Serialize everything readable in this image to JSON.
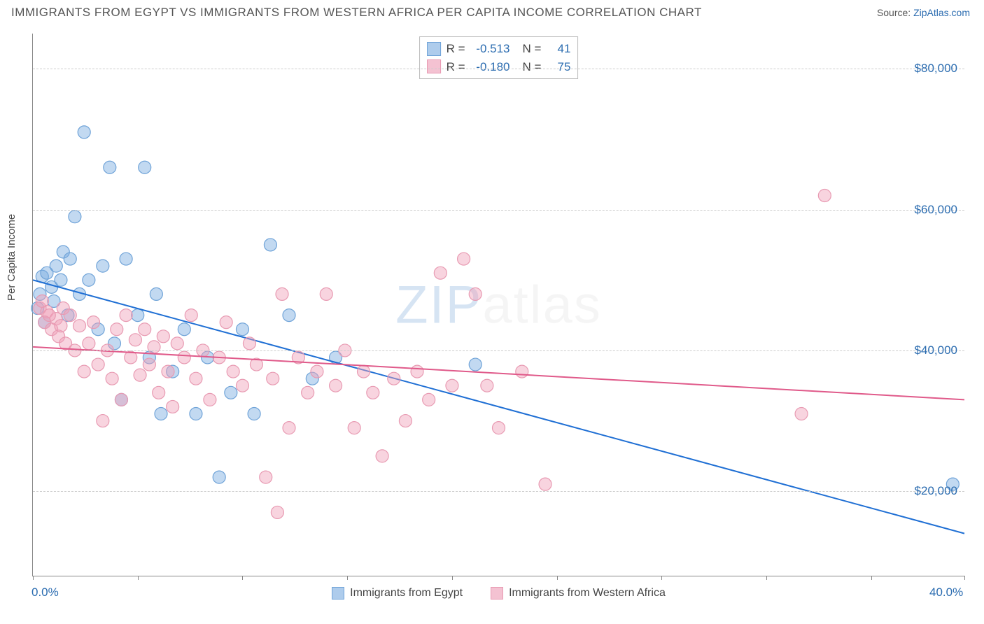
{
  "title": "IMMIGRANTS FROM EGYPT VS IMMIGRANTS FROM WESTERN AFRICA PER CAPITA INCOME CORRELATION CHART",
  "source_label": "Source:",
  "source_name": "ZipAtlas.com",
  "ylabel": "Per Capita Income",
  "watermark": {
    "zip": "ZIP",
    "rest": "atlas"
  },
  "chart": {
    "type": "scatter",
    "xlim": [
      0,
      40
    ],
    "ylim": [
      8000,
      85000
    ],
    "x_axis_labels": [
      {
        "x": 0,
        "text": "0.0%"
      },
      {
        "x": 40,
        "text": "40.0%"
      }
    ],
    "x_ticks": [
      0,
      4.5,
      9,
      13.5,
      18,
      22.5,
      27,
      31.5,
      36,
      40
    ],
    "y_gridlines": [
      20000,
      40000,
      60000,
      80000
    ],
    "y_tick_labels": [
      "$20,000",
      "$40,000",
      "$60,000",
      "$80,000"
    ],
    "grid_color": "#cccccc",
    "axis_color": "#888888",
    "background_color": "#ffffff",
    "marker_radius": 9,
    "marker_opacity": 0.55,
    "line_width": 2,
    "series": [
      {
        "name": "Immigrants from Egypt",
        "color_fill": "rgba(120,170,225,0.45)",
        "color_stroke": "#6fa3d8",
        "swatch_fill": "#aeccec",
        "swatch_border": "#6fa3d8",
        "stats": {
          "R": "-0.513",
          "N": "41"
        },
        "trend": {
          "x1": 0,
          "y1": 50000,
          "x2": 40,
          "y2": 14000,
          "color": "#1f6fd4"
        },
        "points": [
          [
            0.3,
            48000
          ],
          [
            0.4,
            50500
          ],
          [
            0.5,
            44000
          ],
          [
            0.6,
            51000
          ],
          [
            0.8,
            49000
          ],
          [
            0.9,
            47000
          ],
          [
            1.0,
            52000
          ],
          [
            1.2,
            50000
          ],
          [
            1.3,
            54000
          ],
          [
            1.5,
            45000
          ],
          [
            1.6,
            53000
          ],
          [
            1.8,
            59000
          ],
          [
            2.0,
            48000
          ],
          [
            2.2,
            71000
          ],
          [
            2.4,
            50000
          ],
          [
            2.8,
            43000
          ],
          [
            3.0,
            52000
          ],
          [
            3.3,
            66000
          ],
          [
            3.5,
            41000
          ],
          [
            3.8,
            33000
          ],
          [
            4.0,
            53000
          ],
          [
            4.5,
            45000
          ],
          [
            4.8,
            66000
          ],
          [
            5.0,
            39000
          ],
          [
            5.3,
            48000
          ],
          [
            5.5,
            31000
          ],
          [
            6.0,
            37000
          ],
          [
            6.5,
            43000
          ],
          [
            7.0,
            31000
          ],
          [
            7.5,
            39000
          ],
          [
            8.0,
            22000
          ],
          [
            8.5,
            34000
          ],
          [
            9.0,
            43000
          ],
          [
            9.5,
            31000
          ],
          [
            10.2,
            55000
          ],
          [
            11.0,
            45000
          ],
          [
            12.0,
            36000
          ],
          [
            13.0,
            39000
          ],
          [
            19.0,
            38000
          ],
          [
            39.5,
            21000
          ],
          [
            0.2,
            46000
          ]
        ]
      },
      {
        "name": "Immigrants from Western Africa",
        "color_fill": "rgba(240,160,185,0.45)",
        "color_stroke": "#e89ab2",
        "swatch_fill": "#f4c2d2",
        "swatch_border": "#e89ab2",
        "stats": {
          "R": "-0.180",
          "N": "75"
        },
        "trend": {
          "x1": 0,
          "y1": 40500,
          "x2": 40,
          "y2": 33000,
          "color": "#e05a8a"
        },
        "points": [
          [
            0.3,
            46000
          ],
          [
            0.5,
            44000
          ],
          [
            0.6,
            45500
          ],
          [
            0.8,
            43000
          ],
          [
            1.0,
            44500
          ],
          [
            1.1,
            42000
          ],
          [
            1.3,
            46000
          ],
          [
            1.4,
            41000
          ],
          [
            1.6,
            45000
          ],
          [
            1.8,
            40000
          ],
          [
            2.0,
            43500
          ],
          [
            2.2,
            37000
          ],
          [
            2.4,
            41000
          ],
          [
            2.6,
            44000
          ],
          [
            2.8,
            38000
          ],
          [
            3.0,
            30000
          ],
          [
            3.2,
            40000
          ],
          [
            3.4,
            36000
          ],
          [
            3.6,
            43000
          ],
          [
            3.8,
            33000
          ],
          [
            4.0,
            45000
          ],
          [
            4.2,
            39000
          ],
          [
            4.4,
            41500
          ],
          [
            4.6,
            36500
          ],
          [
            4.8,
            43000
          ],
          [
            5.0,
            38000
          ],
          [
            5.2,
            40500
          ],
          [
            5.4,
            34000
          ],
          [
            5.6,
            42000
          ],
          [
            5.8,
            37000
          ],
          [
            6.0,
            32000
          ],
          [
            6.2,
            41000
          ],
          [
            6.5,
            39000
          ],
          [
            6.8,
            45000
          ],
          [
            7.0,
            36000
          ],
          [
            7.3,
            40000
          ],
          [
            7.6,
            33000
          ],
          [
            8.0,
            39000
          ],
          [
            8.3,
            44000
          ],
          [
            8.6,
            37000
          ],
          [
            9.0,
            35000
          ],
          [
            9.3,
            41000
          ],
          [
            9.6,
            38000
          ],
          [
            10.0,
            22000
          ],
          [
            10.3,
            36000
          ],
          [
            10.7,
            48000
          ],
          [
            11.0,
            29000
          ],
          [
            11.4,
            39000
          ],
          [
            11.8,
            34000
          ],
          [
            12.2,
            37000
          ],
          [
            12.6,
            48000
          ],
          [
            13.0,
            35000
          ],
          [
            13.4,
            40000
          ],
          [
            13.8,
            29000
          ],
          [
            14.2,
            37000
          ],
          [
            14.6,
            34000
          ],
          [
            15.0,
            25000
          ],
          [
            15.5,
            36000
          ],
          [
            16.0,
            30000
          ],
          [
            16.5,
            37000
          ],
          [
            17.0,
            33000
          ],
          [
            17.5,
            51000
          ],
          [
            18.0,
            35000
          ],
          [
            18.5,
            53000
          ],
          [
            19.0,
            48000
          ],
          [
            19.5,
            35000
          ],
          [
            20.0,
            29000
          ],
          [
            21.0,
            37000
          ],
          [
            22.0,
            21000
          ],
          [
            10.5,
            17000
          ],
          [
            33.0,
            31000
          ],
          [
            34.0,
            62000
          ],
          [
            0.4,
            47000
          ],
          [
            0.7,
            45000
          ],
          [
            1.2,
            43500
          ]
        ]
      }
    ]
  },
  "legend_bottom": [
    {
      "label": "Immigrants from Egypt",
      "series": 0
    },
    {
      "label": "Immigrants from Western Africa",
      "series": 1
    }
  ]
}
